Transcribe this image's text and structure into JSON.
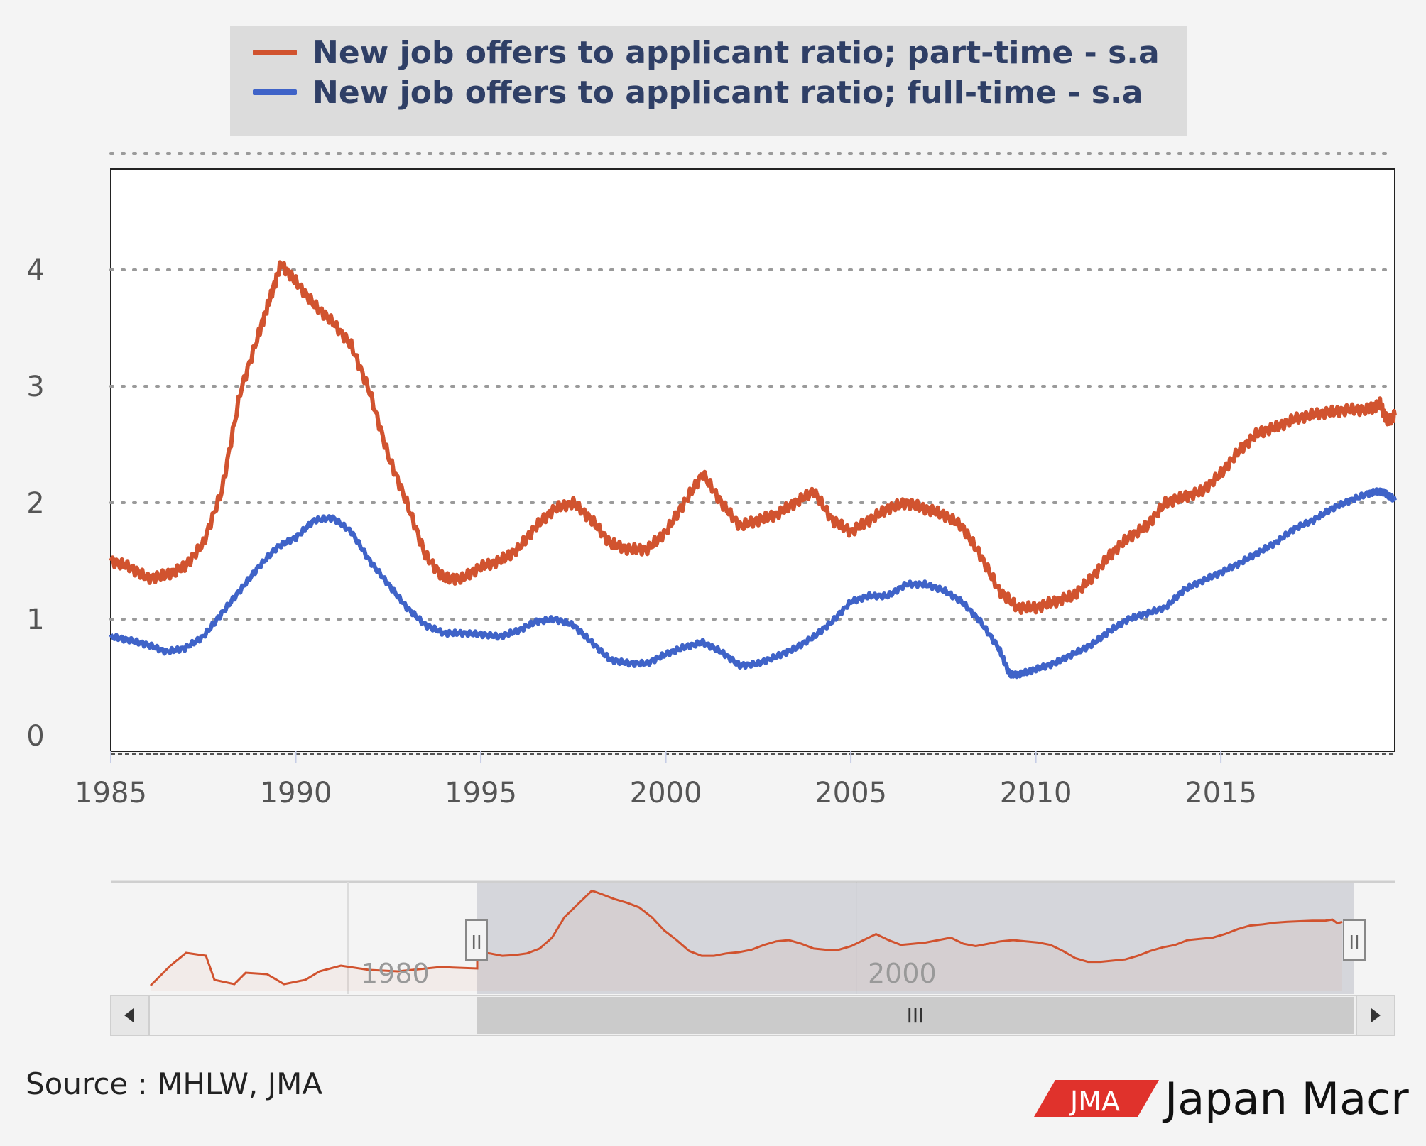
{
  "legend": {
    "items": [
      {
        "label": "New job offers to applicant ratio; part-time - s.a",
        "color": "#d1532f"
      },
      {
        "label": "New job offers to applicant ratio; full-time - s.a",
        "color": "#3f63c8"
      }
    ]
  },
  "navigator": {
    "labels": [
      "1980",
      "2000"
    ],
    "scroll_grip": "III",
    "handle_grip": "II"
  },
  "footer": {
    "source": "Source : MHLW, JMA",
    "logo_mark": "JMA",
    "logo_name": "Japan Macr"
  },
  "colors": {
    "background": "#f4f4f4",
    "legend_bg": "#dcdcdc",
    "part_time": "#d1532f",
    "full_time": "#3f63c8",
    "navigator_fill": "#d2d3d8"
  },
  "icons": {
    "scroll_left": "left-arrow-icon",
    "scroll_right": "right-arrow-icon",
    "handle": "grip-icon"
  },
  "chart_data": {
    "type": "line",
    "title": "",
    "xlabel": "",
    "ylabel": "",
    "x_ticks": [
      "1985",
      "1990",
      "1995",
      "2000",
      "2005",
      "2010",
      "2015"
    ],
    "y_ticks": [
      "0",
      "1",
      "2",
      "3",
      "4"
    ],
    "xlim": [
      1985.0,
      2019.7
    ],
    "ylim": [
      0,
      5
    ],
    "grid": true,
    "legend_position": "top",
    "series": [
      {
        "name": "New job offers to applicant ratio; part-time - s.a",
        "color": "#d1532f",
        "x": [
          1985.0,
          1985.5,
          1986.0,
          1986.5,
          1987.0,
          1987.5,
          1988.0,
          1988.5,
          1989.0,
          1989.3,
          1989.6,
          1990.0,
          1990.5,
          1991.0,
          1991.5,
          1992.0,
          1992.5,
          1993.0,
          1993.5,
          1994.0,
          1994.5,
          1995.0,
          1995.5,
          1996.0,
          1996.5,
          1997.0,
          1997.5,
          1998.0,
          1998.5,
          1999.0,
          1999.5,
          2000.0,
          2000.5,
          2001.0,
          2001.5,
          2002.0,
          2002.5,
          2003.0,
          2003.5,
          2004.0,
          2004.5,
          2005.0,
          2005.5,
          2006.0,
          2006.5,
          2007.0,
          2007.5,
          2008.0,
          2008.5,
          2009.0,
          2009.5,
          2010.0,
          2010.5,
          2011.0,
          2011.5,
          2012.0,
          2012.5,
          2013.0,
          2013.5,
          2014.0,
          2014.5,
          2015.0,
          2015.5,
          2016.0,
          2016.5,
          2017.0,
          2017.5,
          2018.0,
          2018.5,
          2019.0,
          2019.3,
          2019.5,
          2019.7
        ],
        "y": [
          1.5,
          1.45,
          1.35,
          1.38,
          1.45,
          1.65,
          2.1,
          2.95,
          3.45,
          3.75,
          4.05,
          3.9,
          3.7,
          3.55,
          3.35,
          2.95,
          2.4,
          2.0,
          1.55,
          1.35,
          1.35,
          1.45,
          1.5,
          1.6,
          1.8,
          1.95,
          2.0,
          1.85,
          1.65,
          1.6,
          1.6,
          1.75,
          2.0,
          2.25,
          2.0,
          1.8,
          1.85,
          1.9,
          2.0,
          2.1,
          1.85,
          1.75,
          1.85,
          1.95,
          2.0,
          1.95,
          1.9,
          1.8,
          1.55,
          1.25,
          1.1,
          1.1,
          1.15,
          1.2,
          1.35,
          1.55,
          1.7,
          1.8,
          2.0,
          2.05,
          2.1,
          2.25,
          2.45,
          2.6,
          2.65,
          2.72,
          2.76,
          2.78,
          2.8,
          2.8,
          2.85,
          2.7,
          2.75
        ]
      },
      {
        "name": "New job offers to applicant ratio; full-time - s.a",
        "color": "#3f63c8",
        "x": [
          1985.0,
          1985.5,
          1986.0,
          1986.5,
          1987.0,
          1987.5,
          1988.0,
          1988.5,
          1989.0,
          1989.5,
          1990.0,
          1990.5,
          1991.0,
          1991.5,
          1992.0,
          1992.5,
          1993.0,
          1993.5,
          1994.0,
          1994.5,
          1995.0,
          1995.5,
          1996.0,
          1996.5,
          1997.0,
          1997.5,
          1998.0,
          1998.5,
          1999.0,
          1999.5,
          2000.0,
          2000.5,
          2001.0,
          2001.5,
          2002.0,
          2002.5,
          2003.0,
          2003.5,
          2004.0,
          2004.5,
          2005.0,
          2005.5,
          2006.0,
          2006.5,
          2007.0,
          2007.5,
          2008.0,
          2008.5,
          2009.0,
          2009.3,
          2009.6,
          2010.0,
          2010.5,
          2011.0,
          2011.5,
          2012.0,
          2012.5,
          2013.0,
          2013.5,
          2014.0,
          2014.5,
          2015.0,
          2015.5,
          2016.0,
          2016.5,
          2017.0,
          2017.5,
          2018.0,
          2018.5,
          2019.0,
          2019.3,
          2019.5,
          2019.7
        ],
        "y": [
          0.85,
          0.82,
          0.78,
          0.72,
          0.75,
          0.85,
          1.05,
          1.25,
          1.45,
          1.62,
          1.7,
          1.85,
          1.87,
          1.75,
          1.5,
          1.3,
          1.1,
          0.95,
          0.88,
          0.88,
          0.87,
          0.85,
          0.9,
          0.98,
          1.0,
          0.95,
          0.8,
          0.65,
          0.62,
          0.62,
          0.7,
          0.76,
          0.8,
          0.72,
          0.6,
          0.62,
          0.68,
          0.75,
          0.85,
          0.98,
          1.15,
          1.2,
          1.2,
          1.3,
          1.3,
          1.25,
          1.15,
          0.98,
          0.75,
          0.52,
          0.53,
          0.57,
          0.62,
          0.7,
          0.78,
          0.9,
          1.0,
          1.05,
          1.1,
          1.25,
          1.33,
          1.4,
          1.48,
          1.57,
          1.66,
          1.78,
          1.85,
          1.95,
          2.02,
          2.08,
          2.1,
          2.07,
          2.02
        ]
      }
    ]
  }
}
